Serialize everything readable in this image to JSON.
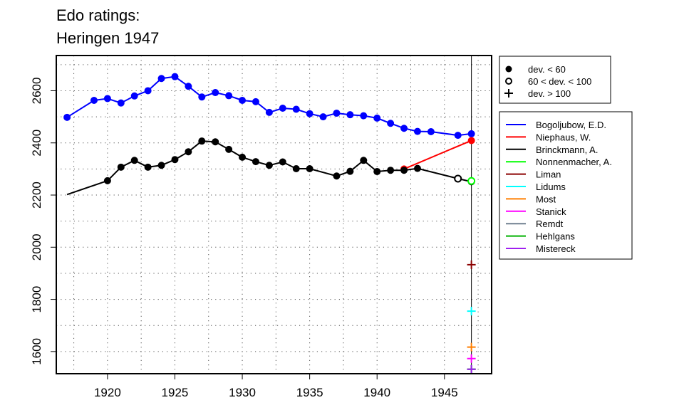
{
  "chart_data": {
    "type": "line",
    "title_lines": [
      "Edo ratings:",
      "Heringen 1947"
    ],
    "xlabel": "",
    "ylabel": "",
    "xlim": [
      1916.2,
      1948.5
    ],
    "ylim": [
      1515,
      2735
    ],
    "x_ticks": [
      1920,
      1925,
      1930,
      1935,
      1940,
      1945
    ],
    "y_ticks": [
      1600,
      1800,
      2000,
      2200,
      2400,
      2600
    ],
    "grid": "dotted",
    "event_year": 1947,
    "marker_legend": [
      {
        "label": "dev. < 60",
        "marker": "filled-circle"
      },
      {
        "label": "60 < dev. < 100",
        "marker": "open-circle"
      },
      {
        "label": "dev. > 100",
        "marker": "plus"
      }
    ],
    "series": [
      {
        "name": "Bogoljubow, E.D.",
        "color": "#0000ff",
        "points": [
          [
            1917,
            2498,
            "filled"
          ],
          [
            1919,
            2563,
            "filled"
          ],
          [
            1920,
            2570,
            "filled"
          ],
          [
            1921,
            2553,
            "filled"
          ],
          [
            1922,
            2580,
            "filled"
          ],
          [
            1923,
            2600,
            "filled"
          ],
          [
            1924,
            2647,
            "filled"
          ],
          [
            1925,
            2654,
            "filled"
          ],
          [
            1926,
            2617,
            "filled"
          ],
          [
            1927,
            2576,
            "filled"
          ],
          [
            1928,
            2593,
            "filled"
          ],
          [
            1929,
            2581,
            "filled"
          ],
          [
            1930,
            2563,
            "filled"
          ],
          [
            1931,
            2558,
            "filled"
          ],
          [
            1932,
            2517,
            "filled"
          ],
          [
            1933,
            2533,
            "filled"
          ],
          [
            1934,
            2529,
            "filled"
          ],
          [
            1935,
            2512,
            "filled"
          ],
          [
            1936,
            2500,
            "filled"
          ],
          [
            1937,
            2514,
            "filled"
          ],
          [
            1938,
            2508,
            "filled"
          ],
          [
            1939,
            2504,
            "filled"
          ],
          [
            1940,
            2495,
            "filled"
          ],
          [
            1941,
            2475,
            "filled"
          ],
          [
            1942,
            2456,
            "filled"
          ],
          [
            1943,
            2444,
            "filled"
          ],
          [
            1944,
            2443,
            "filled"
          ],
          [
            1946,
            2429,
            "filled"
          ],
          [
            1947,
            2435,
            "filled"
          ]
        ]
      },
      {
        "name": "Niephaus, W.",
        "color": "#ff0000",
        "points": [
          [
            1942,
            2300,
            "filled"
          ],
          [
            1947,
            2409,
            "filled"
          ]
        ]
      },
      {
        "name": "Brinckmann, A.",
        "color": "#000000",
        "points": [
          [
            1917,
            2202,
            "none"
          ],
          [
            1920,
            2255,
            "filled"
          ],
          [
            1921,
            2307,
            "filled"
          ],
          [
            1922,
            2333,
            "filled"
          ],
          [
            1923,
            2307,
            "filled"
          ],
          [
            1924,
            2314,
            "filled"
          ],
          [
            1925,
            2336,
            "filled"
          ],
          [
            1926,
            2366,
            "filled"
          ],
          [
            1927,
            2407,
            "filled"
          ],
          [
            1928,
            2404,
            "filled"
          ],
          [
            1929,
            2375,
            "filled"
          ],
          [
            1930,
            2345,
            "filled"
          ],
          [
            1931,
            2328,
            "filled"
          ],
          [
            1932,
            2314,
            "filled"
          ],
          [
            1933,
            2327,
            "filled"
          ],
          [
            1934,
            2301,
            "filled"
          ],
          [
            1935,
            2301,
            "filled"
          ],
          [
            1937,
            2273,
            "filled"
          ],
          [
            1938,
            2291,
            "filled"
          ],
          [
            1939,
            2333,
            "filled"
          ],
          [
            1940,
            2290,
            "filled"
          ],
          [
            1941,
            2295,
            "filled"
          ],
          [
            1942,
            2295,
            "filled"
          ],
          [
            1943,
            2302,
            "filled"
          ],
          [
            1946,
            2263,
            "open"
          ],
          [
            1947,
            2251,
            "filled"
          ]
        ]
      },
      {
        "name": "Nonnenmacher, A.",
        "color": "#00ff00",
        "points": [
          [
            1947,
            2254,
            "open"
          ]
        ]
      },
      {
        "name": "Liman",
        "color": "#8b0000",
        "points": [
          [
            1947,
            1933,
            "plus"
          ]
        ]
      },
      {
        "name": "Lidums",
        "color": "#00ffff",
        "points": [
          [
            1947,
            1755,
            "plus"
          ]
        ]
      },
      {
        "name": "Most",
        "color": "#ff7f00",
        "points": [
          [
            1947,
            1617,
            "plus"
          ]
        ]
      },
      {
        "name": "Stanick",
        "color": "#ff00ff",
        "points": [
          [
            1947,
            1573,
            "plus"
          ]
        ]
      },
      {
        "name": "Remdt",
        "color": "#708090",
        "points": [
          [
            1947,
            1532,
            "plus"
          ]
        ]
      },
      {
        "name": "Hehlgans",
        "color": "#00b000",
        "points": [
          [
            1947,
            1532,
            "plus"
          ]
        ]
      },
      {
        "name": "Mistereck",
        "color": "#a020f0",
        "points": [
          [
            1947,
            1532,
            "plus"
          ]
        ]
      }
    ]
  }
}
